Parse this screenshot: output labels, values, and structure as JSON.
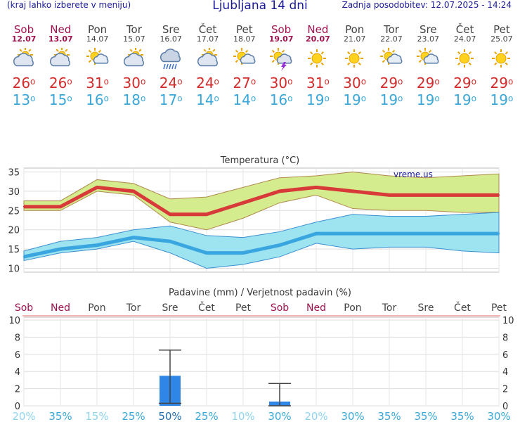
{
  "header": {
    "left_note": "(kraj lahko izberete v meniju)",
    "title": "Ljubljana 14 dni",
    "updated": "Zadnja posodobitev: 12.07.2025 - 14:24"
  },
  "days": [
    {
      "name": "Sob",
      "date": "12.07",
      "weekend": true,
      "icon": "partly-cloudy-icon",
      "tmax": "26",
      "tmin": "13"
    },
    {
      "name": "Ned",
      "date": "13.07",
      "weekend": true,
      "icon": "partly-cloudy-icon",
      "tmax": "26",
      "tmin": "15"
    },
    {
      "name": "Pon",
      "date": "14.07",
      "weekend": false,
      "icon": "sun-cloud-icon",
      "tmax": "31",
      "tmin": "16"
    },
    {
      "name": "Tor",
      "date": "15.07",
      "weekend": false,
      "icon": "partly-cloudy-icon",
      "tmax": "30",
      "tmin": "18"
    },
    {
      "name": "Sre",
      "date": "16.07",
      "weekend": false,
      "icon": "rain-cloud-icon",
      "tmax": "24",
      "tmin": "17"
    },
    {
      "name": "Čet",
      "date": "17.07",
      "weekend": false,
      "icon": "partly-cloudy-icon",
      "tmax": "24",
      "tmin": "14"
    },
    {
      "name": "Pet",
      "date": "18.07",
      "weekend": false,
      "icon": "sun-cloud-icon",
      "tmax": "27",
      "tmin": "14"
    },
    {
      "name": "Sob",
      "date": "19.07",
      "weekend": true,
      "icon": "thunderstorm-icon",
      "tmax": "30",
      "tmin": "16"
    },
    {
      "name": "Ned",
      "date": "20.07",
      "weekend": true,
      "icon": "sun-icon",
      "tmax": "31",
      "tmin": "19"
    },
    {
      "name": "Pon",
      "date": "21.07",
      "weekend": false,
      "icon": "sun-icon",
      "tmax": "30",
      "tmin": "19"
    },
    {
      "name": "Tor",
      "date": "22.07",
      "weekend": false,
      "icon": "sun-cloud-icon",
      "tmax": "29",
      "tmin": "19"
    },
    {
      "name": "Sre",
      "date": "23.07",
      "weekend": false,
      "icon": "sun-cloud-icon",
      "tmax": "29",
      "tmin": "19"
    },
    {
      "name": "Čet",
      "date": "24.07",
      "weekend": false,
      "icon": "sun-icon",
      "tmax": "29",
      "tmin": "19"
    },
    {
      "name": "Pet",
      "date": "25.07",
      "weekend": false,
      "icon": "sun-icon",
      "tmax": "29",
      "tmin": "19"
    }
  ],
  "chart_data": [
    {
      "type": "line",
      "title": "Temperatura (°C)",
      "watermark": "vreme.us",
      "ylim": [
        9,
        36
      ],
      "yticks": [
        10,
        15,
        20,
        25,
        30,
        35
      ],
      "categories": [
        "Sob",
        "Ned",
        "Pon",
        "Tor",
        "Sre",
        "Čet",
        "Pet",
        "Sob",
        "Ned",
        "Pon",
        "Tor",
        "Sre",
        "Čet",
        "Pet"
      ],
      "series": [
        {
          "values": [
            26,
            26,
            31,
            30,
            24,
            24,
            27,
            30,
            31,
            30,
            29,
            29,
            29,
            29
          ],
          "color": "#d83a3a"
        },
        {
          "values": [
            13,
            15,
            16,
            18,
            17,
            14,
            14,
            16,
            19,
            19,
            19,
            19,
            19,
            19
          ],
          "color": "#3aa6e0"
        }
      ],
      "max_band_upper": [
        27.5,
        27.5,
        33,
        32,
        28,
        28.5,
        31,
        33.5,
        34,
        35,
        34,
        33.5,
        34,
        34.5
      ],
      "max_band_lower": [
        25,
        25,
        30,
        29,
        22,
        20,
        23,
        27,
        29,
        25.5,
        25,
        25,
        24.5,
        24.5
      ],
      "min_band_upper": [
        14.5,
        17,
        18,
        20,
        21,
        18.5,
        18,
        19.5,
        22,
        24,
        23.5,
        23.5,
        24,
        24.5
      ],
      "min_band_lower": [
        12,
        14,
        15,
        17,
        14,
        10,
        11,
        13,
        16.5,
        15,
        15.5,
        15.5,
        14.5,
        14
      ],
      "grid": true,
      "band_colors": {
        "max": "#d4eb8e",
        "min": "#9ee4f0"
      }
    },
    {
      "type": "bar",
      "title": "Padavine (mm) / Verjetnost padavin (%)",
      "ylim": [
        0,
        10
      ],
      "yticks": [
        0,
        2,
        4,
        6,
        8,
        10
      ],
      "categories": [
        "Sob",
        "Ned",
        "Pon",
        "Tor",
        "Sre",
        "Čet",
        "Pet",
        "Sob",
        "Ned",
        "Pon",
        "Tor",
        "Sre",
        "Čet",
        "Pet"
      ],
      "values": [
        0,
        0,
        0,
        0,
        3.5,
        0,
        0,
        0.5,
        0,
        0,
        0,
        0,
        0,
        0
      ],
      "error_high": [
        0,
        0,
        0,
        0,
        6.5,
        0,
        0,
        2.6,
        0,
        0,
        0,
        0,
        0,
        0
      ],
      "error_low": [
        0,
        0,
        0,
        0,
        0.3,
        0,
        0,
        0,
        0,
        0,
        0,
        0,
        0,
        0
      ],
      "probability": [
        "20%",
        "35%",
        "15%",
        "25%",
        "50%",
        "25%",
        "10%",
        "30%",
        "20%",
        "30%",
        "35%",
        "35%",
        "35%",
        "30%"
      ],
      "bar_color": "#2f86e6",
      "grid": true
    }
  ]
}
